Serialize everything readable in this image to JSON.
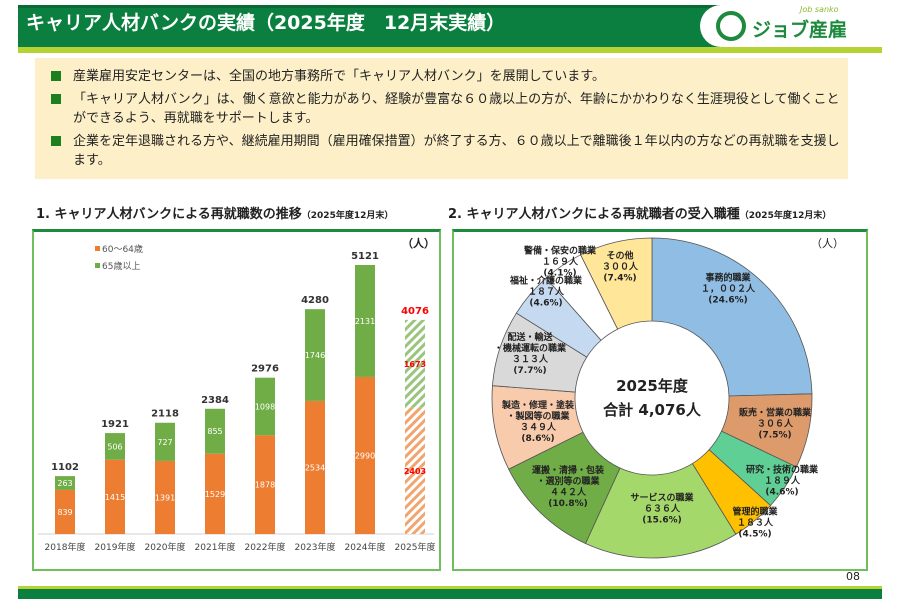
{
  "header": {
    "title": "キャリア人材バンクの実績（2025年度　12月末実績）",
    "logo_text": "ジョブ産雇",
    "logo_sub": "Job sanko"
  },
  "notes": [
    "産業雇用安定センターは、全国の地方事務所で「キャリア人材バンク」を展開しています。",
    "「キャリア人材バンク」は、働く意欲と能力があり、経験が豊富な６０歳以上の方が、年齢にかかわりなく生涯現役として働くことができるよう、再就職をサポートします。",
    "企業を定年退職される方や、継続雇用期間（雇用確保措置）が終了する方、６０歳以上で離職後１年以内の方などの再就職を支援します。"
  ],
  "page_number": "08",
  "chart_data": [
    {
      "type": "bar",
      "stacked": true,
      "title": "1. キャリア人材バンクによる再就職数の推移",
      "subtitle": "（2025年度12月末）",
      "unit": "（人）",
      "categories": [
        "2018年度",
        "2019年度",
        "2020年度",
        "2021年度",
        "2022年度",
        "2023年度",
        "2024年度",
        "2025年度"
      ],
      "series": [
        {
          "name": "60～64歳",
          "color": "#ed7d31",
          "values": [
            839,
            1415,
            1391,
            1529,
            1878,
            2534,
            2990,
            2403
          ]
        },
        {
          "name": "65歳以上",
          "color": "#70ad47",
          "values": [
            263,
            506,
            727,
            855,
            1098,
            1746,
            2131,
            1673
          ]
        }
      ],
      "totals": [
        1102,
        1921,
        2118,
        2384,
        2976,
        4280,
        5121,
        4076
      ],
      "highlight_color": "#ff0000",
      "legend": "top-left"
    },
    {
      "type": "pie",
      "donut": true,
      "title": "2. キャリア人材バンクによる再就職者の受入職種",
      "subtitle": "（2025年度12月末）",
      "unit": "（人）",
      "center_line1": "2025年度",
      "center_line2": "合計 4,076人",
      "slices": [
        {
          "label": "事務的職業",
          "value": 1002,
          "text": "１，００２人",
          "pct": "(24.6%)",
          "color": "#8fbde3"
        },
        {
          "label": "販売・営業の職業",
          "value": 306,
          "text": "３０６人",
          "pct": "(7.5%)",
          "color": "#dd9b6c"
        },
        {
          "label": "研究・技術の職業",
          "value": 189,
          "text": "１８９人",
          "pct": "(4.6%)",
          "color": "#5fcf95"
        },
        {
          "label": "管理的職業",
          "value": 183,
          "text": "１８３人",
          "pct": "(4.5%)",
          "color": "#ffc000"
        },
        {
          "label": "サービスの職業",
          "value": 636,
          "text": "６３６人",
          "pct": "(15.6%)",
          "color": "#a5d86a"
        },
        {
          "label": "運搬・清掃・包装\n・選別等の職業",
          "value": 442,
          "text": "４４２人",
          "pct": "(10.8%)",
          "color": "#70ad47"
        },
        {
          "label": "製造・修理・塗装\n・製図等の職業",
          "value": 349,
          "text": "３４９人",
          "pct": "(8.6%)",
          "color": "#f8cbad"
        },
        {
          "label": "配送・輸送\n・機械運転の職業",
          "value": 313,
          "text": "３１３人",
          "pct": "(7.7%)",
          "color": "#d9d9d9"
        },
        {
          "label": "福祉・介護の職業",
          "value": 187,
          "text": "１８７人",
          "pct": "(4.6%)",
          "color": "#c5d9f1"
        },
        {
          "label": "警備・保安の職業",
          "value": 169,
          "text": "１６９人",
          "pct": "(4.1%)",
          "color": "#ffffff"
        },
        {
          "label": "その他",
          "value": 300,
          "text": "３００人",
          "pct": "(7.4%)",
          "color": "#ffe699"
        }
      ]
    }
  ]
}
